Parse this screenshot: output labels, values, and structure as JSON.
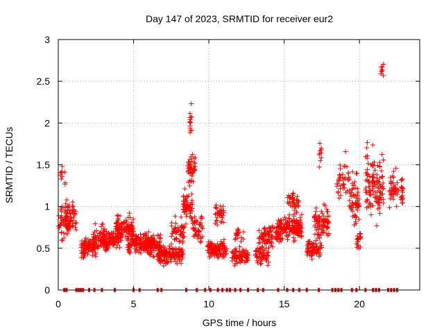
{
  "chart_data": {
    "type": "scatter",
    "title": "Day 147 of 2023, SRMTID for receiver eur2",
    "xlabel": "GPS time / hours",
    "ylabel": "SRMTID / TECUs",
    "xlim": [
      0,
      24
    ],
    "ylim": [
      0,
      3
    ],
    "x_ticks": [
      0,
      5,
      10,
      15,
      20
    ],
    "x_tick_labels": [
      "0",
      "5",
      "10",
      "15",
      "20"
    ],
    "y_ticks": [
      0,
      0.5,
      1,
      1.5,
      2,
      2.5,
      3
    ],
    "y_tick_labels": [
      "0",
      "0.5",
      "1",
      "1.5",
      "2",
      "2.5",
      "3"
    ],
    "grid": true,
    "marker": "+",
    "color": "#ff0000",
    "clusters": [
      {
        "x": [
          0.0,
          0.7
        ],
        "mean": 0.85,
        "spread": 0.25,
        "n": 55
      },
      {
        "x": [
          0.1,
          0.5
        ],
        "mean": 1.35,
        "spread": 0.15,
        "n": 10
      },
      {
        "x": [
          0.5,
          1.2
        ],
        "mean": 0.85,
        "spread": 0.2,
        "n": 50
      },
      {
        "x": [
          1.5,
          2.5
        ],
        "mean": 0.5,
        "spread": 0.12,
        "n": 90
      },
      {
        "x": [
          2.3,
          3.2
        ],
        "mean": 0.6,
        "spread": 0.18,
        "n": 80
      },
      {
        "x": [
          3.2,
          4.2
        ],
        "mean": 0.6,
        "spread": 0.12,
        "n": 80
      },
      {
        "x": [
          3.8,
          5.0
        ],
        "mean": 0.75,
        "spread": 0.16,
        "n": 120
      },
      {
        "x": [
          4.6,
          6.3
        ],
        "mean": 0.55,
        "spread": 0.14,
        "n": 160
      },
      {
        "x": [
          5.8,
          6.8
        ],
        "mean": 0.55,
        "spread": 0.18,
        "n": 70
      },
      {
        "x": [
          6.6,
          8.3
        ],
        "mean": 0.42,
        "spread": 0.12,
        "n": 150
      },
      {
        "x": [
          7.5,
          8.4
        ],
        "mean": 0.7,
        "spread": 0.15,
        "n": 50
      },
      {
        "x": [
          8.3,
          8.9
        ],
        "mean": 1.0,
        "spread": 0.2,
        "n": 60
      },
      {
        "x": [
          8.6,
          9.1
        ],
        "mean": 1.45,
        "spread": 0.2,
        "n": 45
      },
      {
        "x": [
          8.7,
          8.9
        ],
        "mean": 2.05,
        "spread": 0.18,
        "n": 16
      },
      {
        "x": [
          8.9,
          9.6
        ],
        "mean": 0.75,
        "spread": 0.18,
        "n": 45
      },
      {
        "x": [
          9.9,
          11.2
        ],
        "mean": 0.48,
        "spread": 0.12,
        "n": 120
      },
      {
        "x": [
          10.4,
          11.0
        ],
        "mean": 0.9,
        "spread": 0.16,
        "n": 35
      },
      {
        "x": [
          11.5,
          12.6
        ],
        "mean": 0.4,
        "spread": 0.1,
        "n": 80
      },
      {
        "x": [
          11.7,
          12.3
        ],
        "mean": 0.65,
        "spread": 0.12,
        "n": 20
      },
      {
        "x": [
          13.1,
          14.0
        ],
        "mean": 0.42,
        "spread": 0.12,
        "n": 60
      },
      {
        "x": [
          13.3,
          14.8
        ],
        "mean": 0.65,
        "spread": 0.14,
        "n": 90
      },
      {
        "x": [
          14.5,
          16.2
        ],
        "mean": 0.75,
        "spread": 0.16,
        "n": 160
      },
      {
        "x": [
          15.2,
          16.0
        ],
        "mean": 1.05,
        "spread": 0.15,
        "n": 40
      },
      {
        "x": [
          16.5,
          17.5
        ],
        "mean": 0.5,
        "spread": 0.12,
        "n": 70
      },
      {
        "x": [
          17.0,
          18.0
        ],
        "mean": 0.8,
        "spread": 0.2,
        "n": 90
      },
      {
        "x": [
          17.3,
          17.5
        ],
        "mean": 1.6,
        "spread": 0.2,
        "n": 10
      },
      {
        "x": [
          18.5,
          19.3
        ],
        "mean": 1.3,
        "spread": 0.3,
        "n": 40
      },
      {
        "x": [
          19.3,
          20.0
        ],
        "mean": 1.1,
        "spread": 0.35,
        "n": 60
      },
      {
        "x": [
          19.8,
          20.1
        ],
        "mean": 0.6,
        "spread": 0.15,
        "n": 20
      },
      {
        "x": [
          20.4,
          21.1
        ],
        "mean": 1.3,
        "spread": 0.5,
        "n": 70
      },
      {
        "x": [
          21.1,
          21.6
        ],
        "mean": 1.2,
        "spread": 0.45,
        "n": 55
      },
      {
        "x": [
          21.4,
          21.6
        ],
        "mean": 2.6,
        "spread": 0.2,
        "n": 8
      },
      {
        "x": [
          22.0,
          22.9
        ],
        "mean": 1.2,
        "spread": 0.25,
        "n": 60
      }
    ],
    "zero_gap_times": [
      0.4,
      0.55,
      1.2,
      1.35,
      1.5,
      1.65,
      2.05,
      2.4,
      2.9,
      3.75,
      5.0,
      5.4,
      6.6,
      6.85,
      8.5,
      9.2,
      9.75,
      10.1,
      10.6,
      10.9,
      11.2,
      11.4,
      11.75,
      12.1,
      12.6,
      13.25,
      13.6,
      14.6,
      15.2,
      15.6,
      16.0,
      16.5,
      17.3,
      18.2,
      18.4,
      18.6,
      18.8,
      19.5,
      19.8,
      20.4,
      20.9,
      21.1,
      21.3,
      21.9,
      22.1,
      22.3,
      22.5
    ]
  }
}
